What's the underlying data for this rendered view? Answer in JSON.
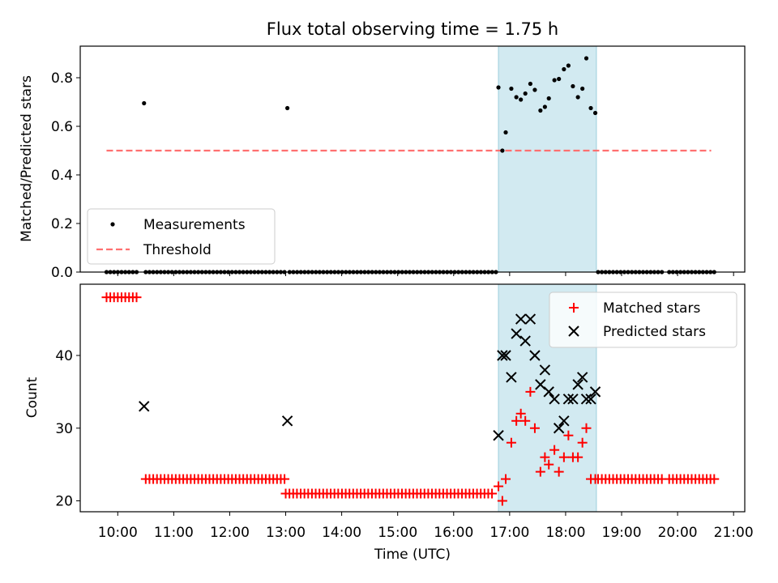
{
  "figure": {
    "title": "Flux total observing time = 1.75 h",
    "xlabel": "Time (UTC)",
    "x_ticks": [
      "10:00",
      "11:00",
      "12:00",
      "13:00",
      "14:00",
      "15:00",
      "16:00",
      "17:00",
      "18:00",
      "19:00",
      "20:00",
      "21:00"
    ]
  },
  "chart_data": [
    {
      "type": "scatter",
      "title": "Flux total observing time = 1.75 h",
      "xlabel": "",
      "ylabel": "Matched/Predicted stars",
      "x_unit": "hours UTC",
      "xlim": [
        9.33,
        21.2
      ],
      "ylim": [
        0,
        0.93
      ],
      "y_ticks": [
        "0.0",
        "0.2",
        "0.4",
        "0.6",
        "0.8"
      ],
      "shaded_interval": {
        "x": [
          16.8,
          18.55
        ],
        "color": "#add8e6"
      },
      "threshold": {
        "name": "Threshold",
        "y": 0.5,
        "x": [
          9.8,
          20.6
        ],
        "color": "#ff7070"
      },
      "legend": {
        "position": "lower-left",
        "entries": [
          "Measurements",
          "Threshold"
        ]
      },
      "series": [
        {
          "name": "Measurements",
          "color": "#000000",
          "marker": "dot",
          "zero_runs": [
            [
              9.8,
              10.4,
              0.067
            ],
            [
              10.5,
              12.98,
              0.067
            ],
            [
              13.07,
              16.77,
              0.067
            ],
            [
              18.58,
              19.78,
              0.067
            ],
            [
              19.85,
              20.68,
              0.067
            ]
          ],
          "points": [
            [
              10.47,
              0.695
            ],
            [
              13.03,
              0.675
            ],
            [
              16.8,
              0.76
            ],
            [
              16.87,
              0.5
            ],
            [
              16.93,
              0.575
            ],
            [
              17.03,
              0.755
            ],
            [
              17.12,
              0.72
            ],
            [
              17.2,
              0.71
            ],
            [
              17.28,
              0.735
            ],
            [
              17.37,
              0.775
            ],
            [
              17.45,
              0.75
            ],
            [
              17.55,
              0.665
            ],
            [
              17.63,
              0.68
            ],
            [
              17.7,
              0.715
            ],
            [
              17.8,
              0.79
            ],
            [
              17.88,
              0.795
            ],
            [
              17.97,
              0.835
            ],
            [
              18.05,
              0.85
            ],
            [
              18.13,
              0.765
            ],
            [
              18.22,
              0.72
            ],
            [
              18.3,
              0.755
            ],
            [
              18.37,
              0.88
            ],
            [
              18.45,
              0.675
            ],
            [
              18.53,
              0.655
            ]
          ]
        }
      ]
    },
    {
      "type": "scatter",
      "xlabel": "Time (UTC)",
      "ylabel": "Count",
      "x_unit": "hours UTC",
      "xlim": [
        9.33,
        21.2
      ],
      "ylim": [
        18.5,
        49.8
      ],
      "y_ticks": [
        "20",
        "30",
        "40"
      ],
      "shaded_interval": {
        "x": [
          16.8,
          18.55
        ],
        "color": "#add8e6"
      },
      "legend": {
        "position": "top-right",
        "entries": [
          "Matched stars",
          "Predicted stars"
        ]
      },
      "series": [
        {
          "name": "Matched stars",
          "color": "#ff0000",
          "marker": "plus",
          "runs": [
            [
              9.8,
              10.4,
              0.067,
              48
            ],
            [
              10.5,
              12.98,
              0.067,
              23
            ],
            [
              13.0,
              16.73,
              0.067,
              21
            ],
            [
              18.58,
              19.78,
              0.067,
              23
            ],
            [
              19.85,
              20.68,
              0.067,
              23
            ]
          ],
          "points": [
            [
              16.8,
              22
            ],
            [
              16.87,
              20
            ],
            [
              16.93,
              23
            ],
            [
              17.03,
              28
            ],
            [
              17.12,
              31
            ],
            [
              17.2,
              32
            ],
            [
              17.28,
              31
            ],
            [
              17.37,
              35
            ],
            [
              17.45,
              30
            ],
            [
              17.55,
              24
            ],
            [
              17.63,
              26
            ],
            [
              17.7,
              25
            ],
            [
              17.8,
              27
            ],
            [
              17.88,
              24
            ],
            [
              17.97,
              26
            ],
            [
              18.05,
              29
            ],
            [
              18.13,
              26
            ],
            [
              18.22,
              26
            ],
            [
              18.3,
              28
            ],
            [
              18.37,
              30
            ],
            [
              18.45,
              23
            ],
            [
              18.53,
              23
            ]
          ]
        },
        {
          "name": "Predicted stars",
          "color": "#000000",
          "marker": "x",
          "points": [
            [
              10.47,
              33
            ],
            [
              13.03,
              31
            ],
            [
              16.8,
              29
            ],
            [
              16.87,
              40
            ],
            [
              16.93,
              40
            ],
            [
              17.03,
              37
            ],
            [
              17.12,
              43
            ],
            [
              17.2,
              45
            ],
            [
              17.28,
              42
            ],
            [
              17.37,
              45
            ],
            [
              17.45,
              40
            ],
            [
              17.55,
              36
            ],
            [
              17.63,
              38
            ],
            [
              17.7,
              35
            ],
            [
              17.8,
              34
            ],
            [
              17.88,
              30
            ],
            [
              17.97,
              31
            ],
            [
              18.05,
              34
            ],
            [
              18.13,
              34
            ],
            [
              18.22,
              36
            ],
            [
              18.3,
              37
            ],
            [
              18.37,
              34
            ],
            [
              18.45,
              34
            ],
            [
              18.53,
              35
            ]
          ]
        }
      ]
    }
  ]
}
